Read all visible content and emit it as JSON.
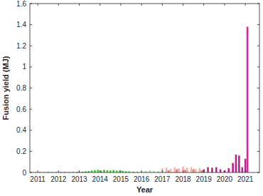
{
  "chart_data": {
    "type": "bar",
    "x_label": "Year",
    "y_label": "Fusion yield (MJ)",
    "xlim": [
      2010.62,
      2021.68
    ],
    "xticks": [
      2011,
      2012,
      2013,
      2014,
      2015,
      2016,
      2017,
      2018,
      2019,
      2020,
      2021
    ],
    "ylim": [
      0,
      1.6
    ],
    "yticks": [
      0,
      0.2,
      0.4,
      0.6,
      0.8,
      1,
      1.2,
      1.4,
      1.6
    ],
    "grid": false,
    "series": [
      {
        "color": "#555555",
        "x": [
          2010.9,
          2011.1,
          2011.3,
          2011.5,
          2011.7,
          2011.9,
          2012.1,
          2012.3,
          2012.5,
          2012.7,
          2012.9
        ],
        "values": [
          0.002,
          0.003,
          0.002,
          0.004,
          0.003,
          0.003,
          0.004,
          0.005,
          0.003,
          0.004,
          0.005
        ]
      },
      {
        "color": "#33cc33",
        "x": [
          2013.0,
          2013.15,
          2013.3,
          2013.45,
          2013.6,
          2013.75,
          2013.9,
          2014.05,
          2014.2,
          2014.35,
          2014.5,
          2014.65,
          2014.8,
          2014.95,
          2015.1,
          2015.25,
          2015.4,
          2015.6
        ],
        "values": [
          0.005,
          0.008,
          0.012,
          0.015,
          0.02,
          0.022,
          0.025,
          0.018,
          0.026,
          0.022,
          0.02,
          0.024,
          0.018,
          0.02,
          0.015,
          0.012,
          0.01,
          0.008
        ]
      },
      {
        "color": "#99dd99",
        "x": [
          2015.8,
          2016.0,
          2016.2,
          2016.4,
          2016.6,
          2016.8
        ],
        "values": [
          0.01,
          0.012,
          0.015,
          0.02,
          0.015,
          0.012
        ]
      },
      {
        "color": "#f4b0b0",
        "x": [
          2017.0,
          2017.2,
          2017.4,
          2017.6,
          2017.8,
          2018.0,
          2018.2,
          2018.4,
          2018.6,
          2018.8
        ],
        "values": [
          0.04,
          0.045,
          0.035,
          0.05,
          0.04,
          0.055,
          0.045,
          0.05,
          0.035,
          0.04
        ]
      },
      {
        "color": "#e87850",
        "x": [
          2017.3,
          2017.7,
          2018.1,
          2018.5,
          2018.9
        ],
        "values": [
          0.02,
          0.03,
          0.025,
          0.03,
          0.02
        ]
      },
      {
        "color": "#c0208a",
        "x": [
          2019.0,
          2019.2,
          2019.4,
          2019.6,
          2019.8,
          2020.0,
          2020.2,
          2020.4,
          2020.55,
          2020.7,
          2020.85,
          2021.0
        ],
        "values": [
          0.03,
          0.05,
          0.045,
          0.05,
          0.03,
          0.02,
          0.04,
          0.09,
          0.17,
          0.16,
          0.05,
          0.13
        ]
      },
      {
        "color": "#e020a0",
        "x": [
          2021.1
        ],
        "values": [
          1.38
        ]
      }
    ]
  }
}
